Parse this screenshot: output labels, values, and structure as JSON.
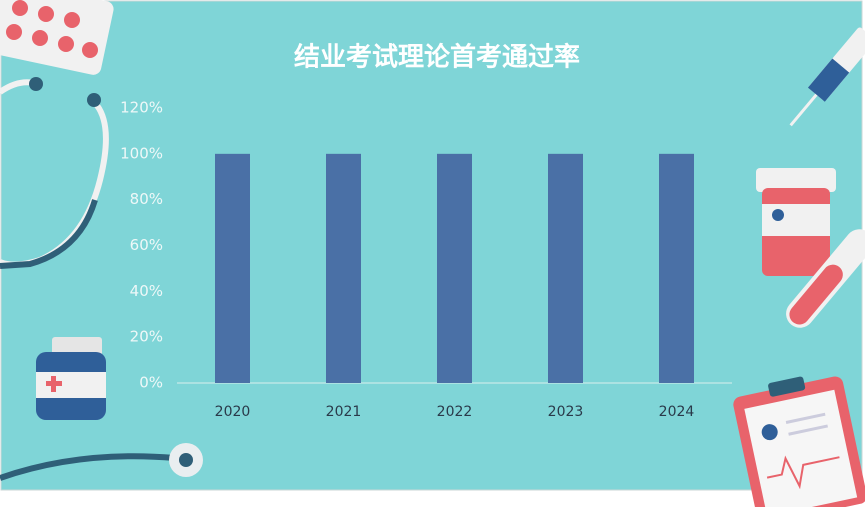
{
  "chart_data": {
    "type": "bar",
    "title": "结业考试理论首考通过率",
    "categories": [
      "2020",
      "2021",
      "2022",
      "2023",
      "2024"
    ],
    "values": [
      100,
      100,
      100,
      100,
      100
    ],
    "color": "#4a70a6",
    "ylim": [
      0,
      120
    ],
    "yticks": [
      {
        "value": 0,
        "label": "0%"
      },
      {
        "value": 20,
        "label": "20%"
      },
      {
        "value": 40,
        "label": "40%"
      },
      {
        "value": 60,
        "label": "60%"
      },
      {
        "value": 80,
        "label": "80%"
      },
      {
        "value": 100,
        "label": "100%"
      },
      {
        "value": 120,
        "label": "120%"
      }
    ],
    "grid": false
  }
}
